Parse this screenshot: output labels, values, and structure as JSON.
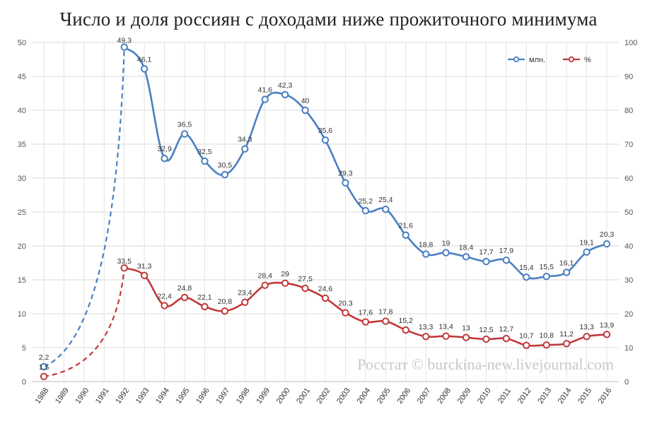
{
  "title": "Число и доля россиян с доходами ниже прожиточного минимума",
  "watermark": "Росстат © burckina-new.livejournal.com",
  "chart_data": {
    "type": "line",
    "title": "Число и доля россиян с доходами ниже прожиточного минимума",
    "x": [
      "1988",
      "1989",
      "1990",
      "1991",
      "1992",
      "1993",
      "1994",
      "1995",
      "1996",
      "1997",
      "1998",
      "1999",
      "2000",
      "2001",
      "2002",
      "2003",
      "2004",
      "2005",
      "2006",
      "2007",
      "2008",
      "2009",
      "2010",
      "2011",
      "2012",
      "2013",
      "2014",
      "2015",
      "2016"
    ],
    "ylim_left": [
      0,
      50
    ],
    "yticks_left": [
      "0",
      "5",
      "10",
      "15",
      "20",
      "25",
      "30",
      "35",
      "40",
      "45",
      "50"
    ],
    "ylim_right": [
      0,
      100
    ],
    "yticks_right": [
      "0",
      "10",
      "20",
      "30",
      "40",
      "50",
      "60",
      "70",
      "80",
      "90",
      "100"
    ],
    "grid": true,
    "legend_position": "top-right",
    "series": [
      {
        "name": "млн.",
        "axis": "left",
        "color": "#4a7fc1",
        "dashed_until": "1992",
        "values": [
          2.2,
          null,
          null,
          null,
          49.3,
          46.1,
          32.9,
          36.5,
          32.5,
          30.5,
          34.3,
          41.6,
          42.3,
          40,
          35.6,
          29.3,
          25.2,
          25.4,
          21.6,
          18.8,
          19,
          18.4,
          17.7,
          17.9,
          15.4,
          15.5,
          16.1,
          19.1,
          20.3
        ],
        "labels": [
          "2,2",
          "",
          "",
          "",
          "49,3",
          "46,1",
          "32,9",
          "36,5",
          "32,5",
          "30,5",
          "34,3",
          "41,6",
          "42,3",
          "40",
          "35,6",
          "29,3",
          "25,2",
          "25,4",
          "21,6",
          "18,8",
          "19",
          "18,4",
          "17,7",
          "17,9",
          "15,4",
          "15,5",
          "16,1",
          "19,1",
          "20,3"
        ]
      },
      {
        "name": "%",
        "axis": "right",
        "color": "#c0393b",
        "dashed_until": "1992",
        "values": [
          1.5,
          null,
          null,
          null,
          33.5,
          31.3,
          22.4,
          24.8,
          22.1,
          20.8,
          23.4,
          28.4,
          29,
          27.5,
          24.6,
          20.3,
          17.6,
          17.8,
          15.2,
          13.3,
          13.4,
          13,
          12.5,
          12.7,
          10.7,
          10.8,
          11.2,
          13.3,
          13.9
        ],
        "labels": [
          "1,5",
          "",
          "",
          "",
          "33,5",
          "31,3",
          "22,4",
          "24,8",
          "22,1",
          "20,8",
          "23,4",
          "28,4",
          "29",
          "27,5",
          "24,6",
          "20,3",
          "17,6",
          "17,8",
          "15,2",
          "13,3",
          "13,4",
          "13",
          "12,5",
          "12,7",
          "10,7",
          "10,8",
          "11,2",
          "13,3",
          "13,9"
        ]
      }
    ]
  }
}
